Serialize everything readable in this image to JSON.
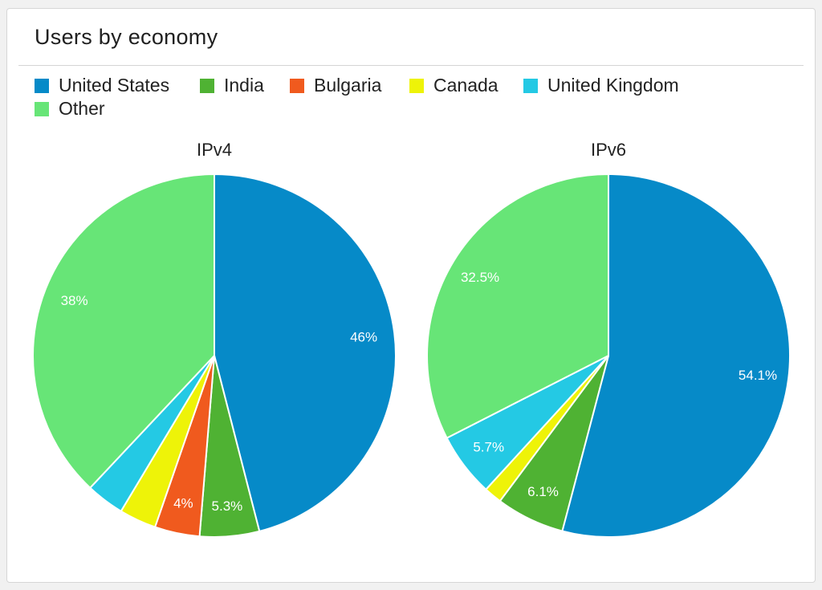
{
  "card": {
    "title": "Users by economy"
  },
  "colors": {
    "United States": "#068ac8",
    "India": "#4fb233",
    "Bulgaria": "#f05a1e",
    "Canada": "#eef308",
    "United Kingdom": "#24c9e4",
    "Other": "#67e577"
  },
  "legend": [
    "United States",
    "India",
    "Bulgaria",
    "Canada",
    "United Kingdom",
    "Other"
  ],
  "chart_data": [
    {
      "type": "pie",
      "title": "IPv4",
      "slices": [
        {
          "name": "United States",
          "value": 46,
          "label": "46%"
        },
        {
          "name": "India",
          "value": 5.3,
          "label": "5.3%"
        },
        {
          "name": "Bulgaria",
          "value": 4,
          "label": "4%"
        },
        {
          "name": "Canada",
          "value": 3.3,
          "label": ""
        },
        {
          "name": "United Kingdom",
          "value": 3.4,
          "label": ""
        },
        {
          "name": "Other",
          "value": 38,
          "label": "38%"
        }
      ]
    },
    {
      "type": "pie",
      "title": "IPv6",
      "slices": [
        {
          "name": "United States",
          "value": 54.1,
          "label": "54.1%"
        },
        {
          "name": "India",
          "value": 6.1,
          "label": "6.1%"
        },
        {
          "name": "Bulgaria",
          "value": 0,
          "label": ""
        },
        {
          "name": "Canada",
          "value": 1.6,
          "label": ""
        },
        {
          "name": "United Kingdom",
          "value": 5.7,
          "label": "5.7%"
        },
        {
          "name": "Other",
          "value": 32.5,
          "label": "32.5%"
        }
      ]
    }
  ]
}
